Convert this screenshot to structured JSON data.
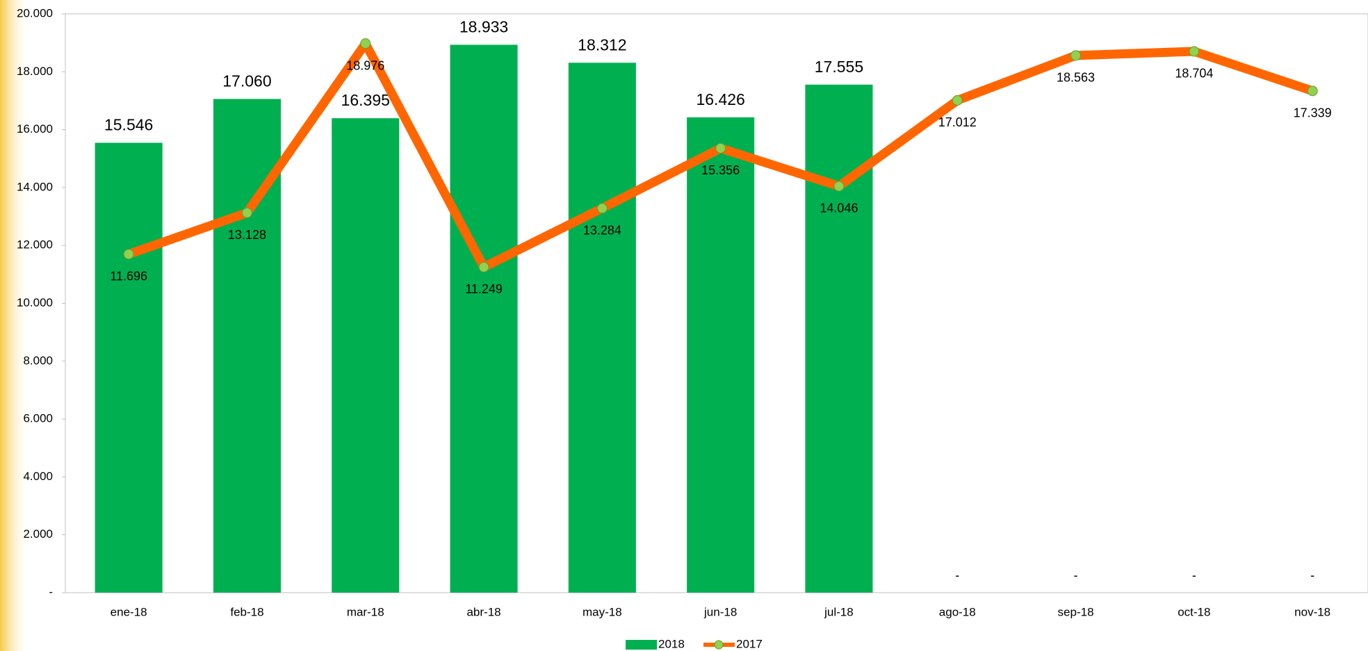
{
  "chart_data": {
    "type": "bar-line",
    "categories": [
      "ene-18",
      "feb-18",
      "mar-18",
      "abr-18",
      "may-18",
      "jun-18",
      "jul-18",
      "ago-18",
      "sep-18",
      "oct-18",
      "nov-18"
    ],
    "series": [
      {
        "name": "2018",
        "type": "bar",
        "color": "#00b050",
        "values": [
          15546,
          17060,
          16395,
          18933,
          18312,
          16426,
          17555,
          0,
          0,
          0,
          0
        ],
        "value_labels": [
          "15.546",
          "17.060",
          "16.395",
          "18.933",
          "18.312",
          "16.426",
          "17.555",
          "-",
          "-",
          "-",
          "-"
        ]
      },
      {
        "name": "2017",
        "type": "line",
        "color": "#ff6600",
        "marker_color": "#92d050",
        "values": [
          11696,
          13128,
          18976,
          11249,
          13284,
          15356,
          14046,
          17012,
          18563,
          18704,
          17339
        ],
        "value_labels": [
          "11.696",
          "13.128",
          "18.976",
          "11.249",
          "13.284",
          "15.356",
          "14.046",
          "17.012",
          "18.563",
          "18.704",
          "17.339"
        ]
      }
    ],
    "ylim": [
      0,
      20000
    ],
    "yticks": [
      {
        "value": 0,
        "label": "-"
      },
      {
        "value": 2000,
        "label": "2.000"
      },
      {
        "value": 4000,
        "label": "4.000"
      },
      {
        "value": 6000,
        "label": "6.000"
      },
      {
        "value": 8000,
        "label": "8.000"
      },
      {
        "value": 10000,
        "label": "10.000"
      },
      {
        "value": 12000,
        "label": "12.000"
      },
      {
        "value": 14000,
        "label": "14.000"
      },
      {
        "value": 16000,
        "label": "16.000"
      },
      {
        "value": 18000,
        "label": "18.000"
      },
      {
        "value": 20000,
        "label": "20.000"
      }
    ],
    "legend": "bottom"
  }
}
